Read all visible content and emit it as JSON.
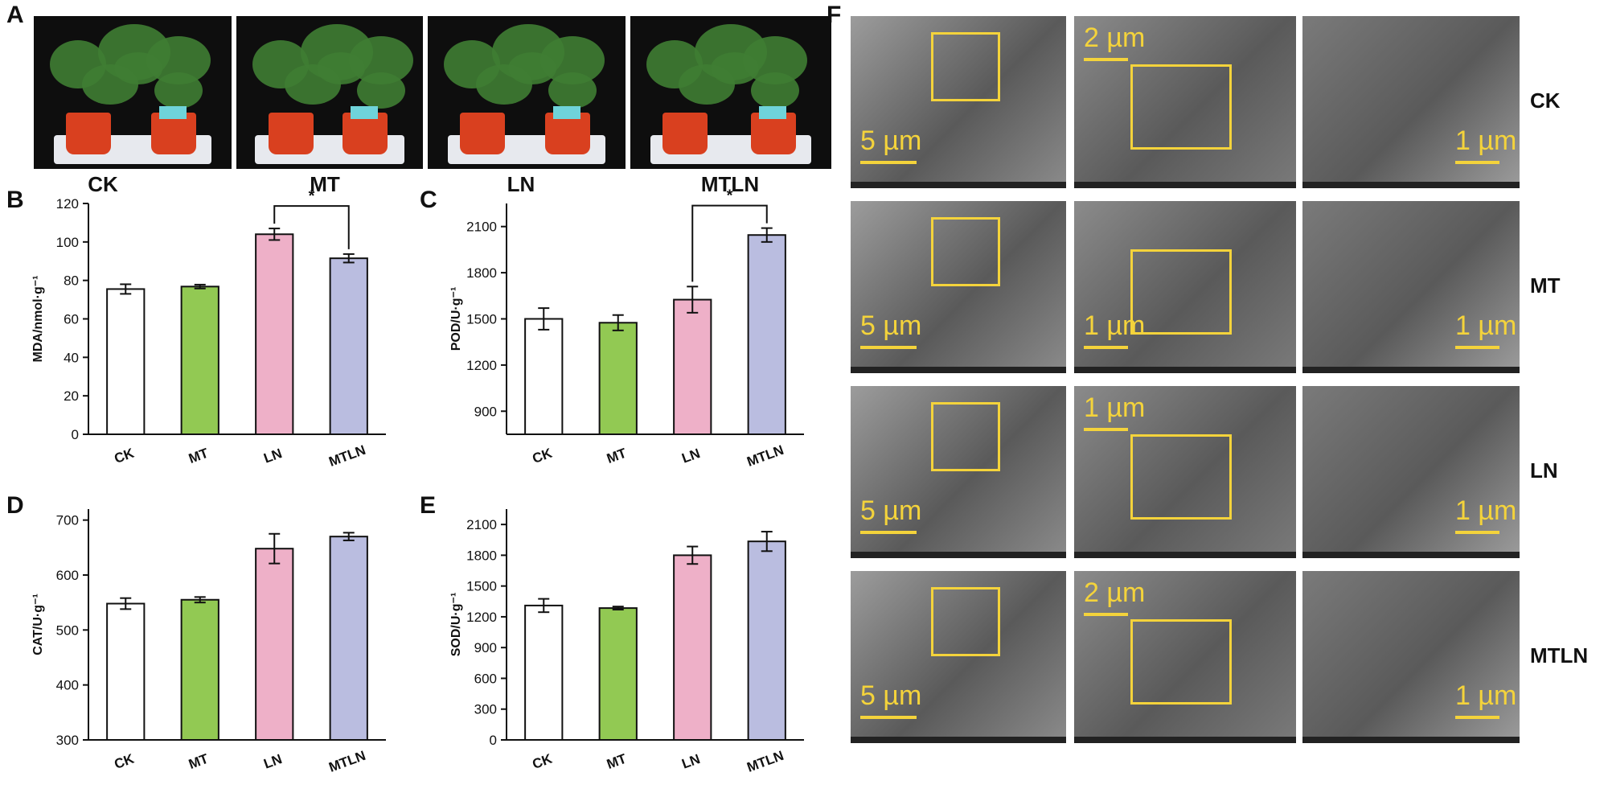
{
  "panels": {
    "A": "A",
    "B": "B",
    "C": "C",
    "D": "D",
    "E": "E",
    "F": "F"
  },
  "photo_labels": [
    "CK",
    "MT",
    "LN",
    "MTLN"
  ],
  "tem_rows": [
    {
      "label": "CK",
      "scales": [
        "5 µm",
        "2 µm",
        "1 µm"
      ]
    },
    {
      "label": "MT",
      "scales": [
        "5 µm",
        "1 µm",
        "1 µm"
      ]
    },
    {
      "label": "LN",
      "scales": [
        "5 µm",
        "1 µm",
        "1 µm"
      ]
    },
    {
      "label": "MTLN",
      "scales": [
        "5 µm",
        "2 µm",
        "1 µm"
      ]
    }
  ],
  "colors": {
    "CK": "#ffffff",
    "MT": "#92c953",
    "LN": "#eeb0c8",
    "MTLN": "#babde0",
    "scale_yellow": "#f4d33b"
  },
  "chart_data": [
    {
      "panel": "B",
      "type": "bar",
      "categories": [
        "CK",
        "MT",
        "LN",
        "MTLN"
      ],
      "values": [
        75.5,
        76.8,
        104,
        91.5
      ],
      "errors": [
        2.5,
        1.0,
        3.0,
        2.2
      ],
      "ylabel": "MDA/nmol·g⁻¹",
      "ylim": [
        0,
        120
      ],
      "yticks": [
        0,
        20,
        40,
        60,
        80,
        100,
        120
      ],
      "significance": {
        "pair": [
          "LN",
          "MTLN"
        ],
        "mark": "*"
      }
    },
    {
      "panel": "C",
      "type": "bar",
      "categories": [
        "CK",
        "MT",
        "LN",
        "MTLN"
      ],
      "values": [
        1500,
        1475,
        1625,
        2045
      ],
      "errors": [
        70,
        50,
        85,
        45
      ],
      "ylabel": "POD/U·g⁻¹",
      "ylim": [
        750,
        2250
      ],
      "yticks": [
        900,
        1200,
        1500,
        1800,
        2100
      ],
      "significance": {
        "pair": [
          "LN",
          "MTLN"
        ],
        "mark": "*"
      }
    },
    {
      "panel": "D",
      "type": "bar",
      "categories": [
        "CK",
        "MT",
        "LN",
        "MTLN"
      ],
      "values": [
        548,
        555,
        648,
        670
      ],
      "errors": [
        10,
        5,
        27,
        7
      ],
      "ylabel": "CAT/U·g⁻¹",
      "ylim": [
        300,
        720
      ],
      "yticks": [
        300,
        400,
        500,
        600,
        700
      ]
    },
    {
      "panel": "E",
      "type": "bar",
      "categories": [
        "CK",
        "MT",
        "LN",
        "MTLN"
      ],
      "values": [
        1310,
        1285,
        1800,
        1935
      ],
      "errors": [
        65,
        15,
        85,
        95
      ],
      "ylabel": "SOD/U·g⁻¹",
      "ylim": [
        0,
        2250
      ],
      "yticks": [
        0,
        300,
        600,
        900,
        1200,
        1500,
        1800,
        2100
      ]
    }
  ]
}
